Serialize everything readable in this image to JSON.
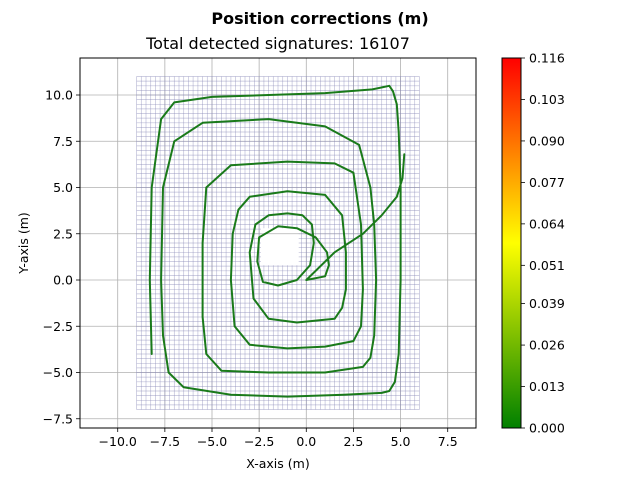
{
  "chart_data": {
    "type": "scatter",
    "title": "Position corrections (m)",
    "subtitle": "Total detected signatures: 16107",
    "xlabel": "X-axis (m)",
    "ylabel": "Y-axis (m)",
    "xlim": [
      -12,
      9
    ],
    "ylim": [
      -8,
      12
    ],
    "x_ticks": [
      -10,
      -7.5,
      -5,
      -2.5,
      0,
      2.5,
      5,
      7.5
    ],
    "x_tick_labels": [
      "−10.0",
      "−7.5",
      "−5.0",
      "−2.5",
      "0.0",
      "2.5",
      "5.0",
      "7.5"
    ],
    "y_ticks": [
      -7.5,
      -5,
      -2.5,
      0,
      2.5,
      5,
      7.5,
      10
    ],
    "y_tick_labels": [
      "−7.5",
      "−5.0",
      "−2.5",
      "0.0",
      "2.5",
      "5.0",
      "7.5",
      "10.0"
    ],
    "grid": true,
    "reference_grid": {
      "description": "dense lattice of detected signatures",
      "color": "#8a8ab8",
      "x_range": [
        -9,
        6
      ],
      "y_range": [
        -7,
        11
      ],
      "void_x": [
        -2.4,
        -0.4
      ],
      "void_y": [
        0.8,
        2.8
      ]
    },
    "trajectory": {
      "color": "#1a7a1a",
      "x": [
        -8.2,
        -8.3,
        -8.2,
        -7.7,
        -7.0,
        -5.0,
        -2.0,
        1.0,
        3.5,
        4.4,
        4.6,
        4.8,
        4.9,
        5.0,
        5.0,
        4.9,
        4.7,
        4.4,
        4.0,
        2.0,
        -1.0,
        -4.0,
        -6.5,
        -7.3,
        -7.6,
        -7.7,
        -7.6,
        -7.0,
        -5.5,
        -2.0,
        1.0,
        2.8,
        3.4,
        3.6,
        3.7,
        3.6,
        3.4,
        3.0,
        1.0,
        -2.0,
        -4.5,
        -5.3,
        -5.5,
        -5.5,
        -5.3,
        -4.0,
        -1.0,
        1.5,
        2.5,
        2.9,
        3.0,
        2.9,
        2.5,
        1.0,
        -1.0,
        -3.0,
        -3.8,
        -4.0,
        -3.9,
        -3.6,
        -3.0,
        -1.0,
        1.0,
        1.9,
        2.1,
        2.1,
        1.9,
        1.5,
        -0.5,
        -2.0,
        -2.8,
        -3.0,
        -2.7,
        -2.0,
        -1.0,
        -0.2,
        0.3,
        0.4,
        0.2,
        -0.5,
        -1.5,
        -2.3,
        -2.6,
        -2.5,
        -1.5,
        -0.5,
        0.5,
        1.1,
        1.2,
        1.0,
        0.0,
        1.5,
        3.0,
        4.0,
        4.8,
        5.1,
        5.2
      ],
      "y": [
        -4.0,
        0.0,
        5.0,
        8.7,
        9.6,
        9.9,
        10.0,
        10.1,
        10.3,
        10.5,
        10.2,
        9.5,
        8.0,
        5.0,
        0.0,
        -4.0,
        -5.5,
        -6.0,
        -6.1,
        -6.2,
        -6.3,
        -6.2,
        -5.8,
        -5.0,
        -3.0,
        0.0,
        5.0,
        7.5,
        8.5,
        8.7,
        8.3,
        7.3,
        5.0,
        3.0,
        0.0,
        -3.0,
        -4.2,
        -4.7,
        -5.0,
        -5.0,
        -4.9,
        -4.0,
        -2.0,
        2.0,
        5.0,
        6.2,
        6.4,
        6.3,
        5.8,
        3.0,
        -0.5,
        -2.5,
        -3.3,
        -3.6,
        -3.7,
        -3.5,
        -2.5,
        0.0,
        2.5,
        3.8,
        4.5,
        4.8,
        4.6,
        3.5,
        1.5,
        -0.5,
        -1.5,
        -2.1,
        -2.3,
        -2.1,
        -1.0,
        1.5,
        3.0,
        3.5,
        3.6,
        3.5,
        3.0,
        2.0,
        0.8,
        0.0,
        -0.3,
        -0.1,
        1.0,
        2.3,
        2.9,
        2.8,
        2.3,
        1.5,
        0.8,
        0.2,
        0.0,
        1.5,
        2.5,
        3.5,
        4.5,
        5.5,
        6.8
      ]
    },
    "colorbar": {
      "ticks": [
        0.0,
        0.013,
        0.026,
        0.039,
        0.051,
        0.064,
        0.077,
        0.09,
        0.103,
        0.116
      ],
      "tick_labels": [
        "0.000",
        "0.013",
        "0.026",
        "0.039",
        "0.051",
        "0.064",
        "0.077",
        "0.090",
        "0.103",
        "0.116"
      ],
      "range": [
        0.0,
        0.116
      ],
      "colors": [
        "#008000",
        "#ffff00",
        "#ff0000"
      ]
    }
  }
}
